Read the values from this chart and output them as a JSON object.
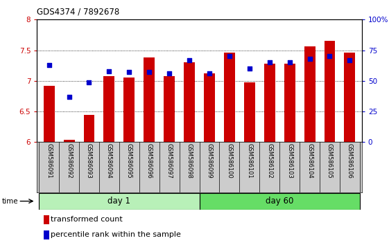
{
  "title": "GDS4374 / 7892678",
  "categories": [
    "GSM586091",
    "GSM586092",
    "GSM586093",
    "GSM586094",
    "GSM586095",
    "GSM586096",
    "GSM586097",
    "GSM586098",
    "GSM586099",
    "GSM586100",
    "GSM586101",
    "GSM586102",
    "GSM586103",
    "GSM586104",
    "GSM586105",
    "GSM586106"
  ],
  "red_values": [
    6.92,
    6.04,
    6.44,
    7.08,
    7.06,
    7.38,
    7.08,
    7.3,
    7.12,
    7.46,
    6.97,
    7.28,
    7.28,
    7.56,
    7.65,
    7.46
  ],
  "blue_values": [
    63,
    37,
    49,
    58,
    57,
    57,
    56,
    67,
    56,
    70,
    60,
    65,
    65,
    68,
    70,
    67
  ],
  "ylim_left": [
    6,
    8
  ],
  "ylim_right": [
    0,
    100
  ],
  "yticks_left": [
    6,
    6.5,
    7,
    7.5,
    8
  ],
  "yticks_right": [
    0,
    25,
    50,
    75,
    100
  ],
  "ytick_labels_left": [
    "6",
    "6.5",
    "7",
    "7.5",
    "8"
  ],
  "ytick_labels_right": [
    "0",
    "25",
    "50",
    "75",
    "100%"
  ],
  "day1_indices": [
    0,
    1,
    2,
    3,
    4,
    5,
    6,
    7
  ],
  "day60_indices": [
    8,
    9,
    10,
    11,
    12,
    13,
    14,
    15
  ],
  "day1_label": "day 1",
  "day60_label": "day 60",
  "legend_red": "transformed count",
  "legend_blue": "percentile rank within the sample",
  "bar_color": "#CC0000",
  "dot_color": "#0000CC",
  "bar_baseline": 6,
  "bar_width": 0.55,
  "dot_size": 18,
  "day1_color": "#B8F0B8",
  "day60_color": "#66DD66",
  "background_color": "#FFFFFF",
  "label_area_color": "#CCCCCC"
}
